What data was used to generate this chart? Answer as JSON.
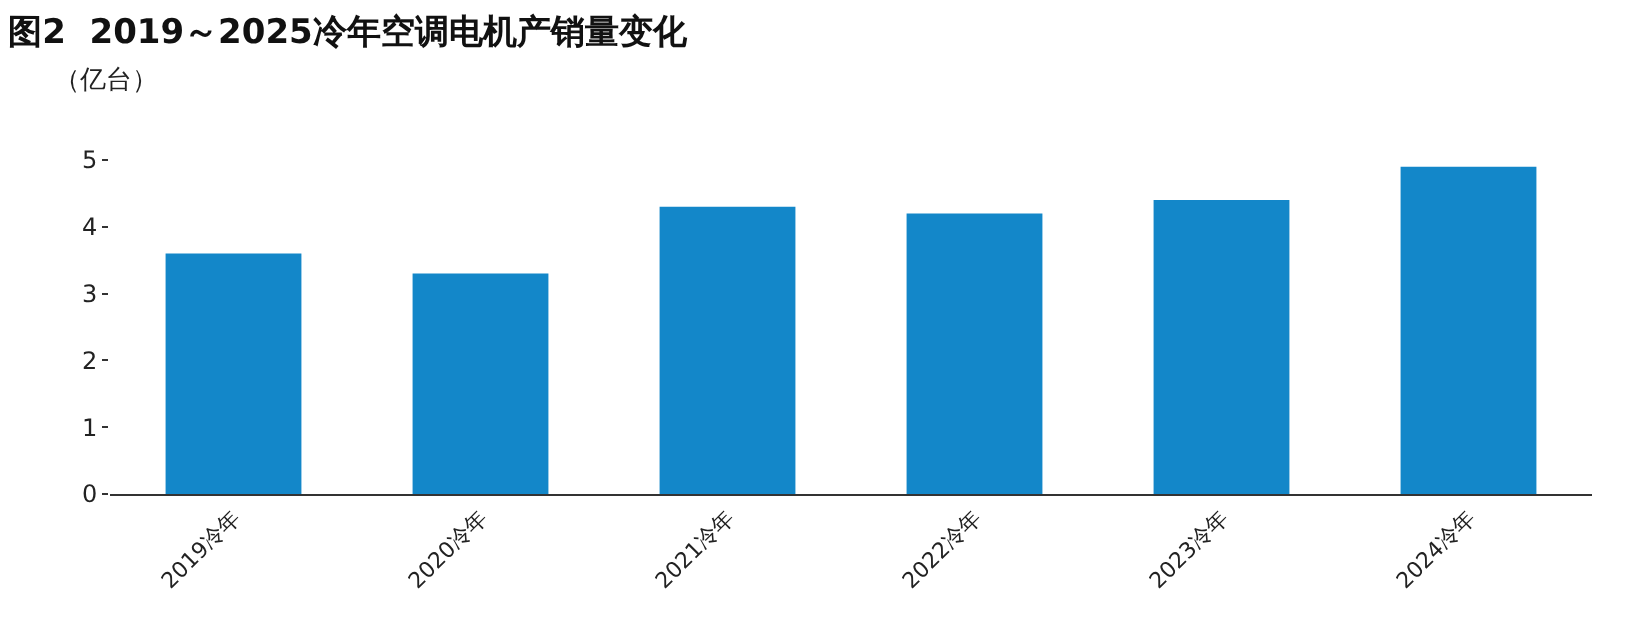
{
  "chart_data": {
    "type": "bar",
    "title": "图2  2019～2025冷年空调电机产销量变化",
    "ylabel": "（亿台）",
    "categories": [
      "2019冷年",
      "2020冷年",
      "2021冷年",
      "2022冷年",
      "2023冷年",
      "2024冷年"
    ],
    "values": [
      3.6,
      3.3,
      4.3,
      4.2,
      4.4,
      4.9
    ],
    "color": "#1387c9",
    "ylim": [
      0,
      5
    ],
    "yticks": [
      0,
      1,
      2,
      3,
      4,
      5
    ],
    "grid": false,
    "legend": false
  }
}
